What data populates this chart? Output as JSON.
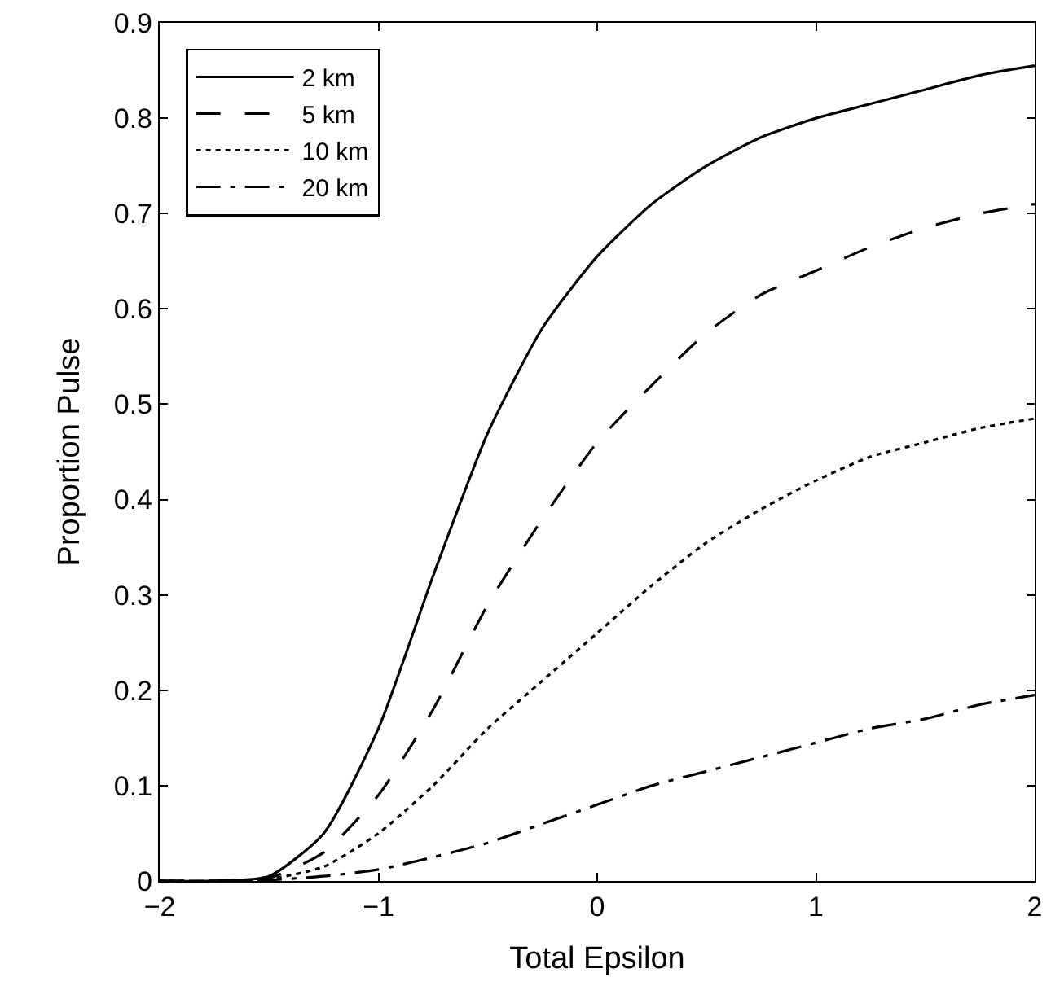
{
  "chart_data": {
    "type": "line",
    "xlabel": "Total Epsilon",
    "ylabel": "Proportion Pulse",
    "x": [
      -2,
      -1.75,
      -1.5,
      -1.25,
      -1,
      -0.75,
      -0.5,
      -0.25,
      0,
      0.25,
      0.5,
      0.75,
      1,
      1.25,
      1.5,
      1.75,
      2
    ],
    "series": [
      {
        "name": "2 km",
        "color": "#000000",
        "line_style": "solid",
        "values": [
          0,
          0,
          0.005,
          0.05,
          0.16,
          0.32,
          0.47,
          0.58,
          0.655,
          0.71,
          0.75,
          0.78,
          0.8,
          0.815,
          0.83,
          0.845,
          0.855
        ]
      },
      {
        "name": "5 km",
        "color": "#000000",
        "line_style": "dashed",
        "values": [
          0,
          0,
          0.003,
          0.03,
          0.09,
          0.18,
          0.29,
          0.38,
          0.46,
          0.52,
          0.575,
          0.615,
          0.64,
          0.665,
          0.685,
          0.7,
          0.71
        ]
      },
      {
        "name": "10 km",
        "color": "#000000",
        "line_style": "dotted",
        "values": [
          0,
          0,
          0.002,
          0.015,
          0.05,
          0.1,
          0.16,
          0.21,
          0.26,
          0.31,
          0.355,
          0.39,
          0.42,
          0.445,
          0.46,
          0.475,
          0.485
        ]
      },
      {
        "name": "20 km",
        "color": "#000000",
        "line_style": "dashdot",
        "values": [
          0,
          0,
          0.001,
          0.005,
          0.012,
          0.025,
          0.04,
          0.06,
          0.08,
          0.1,
          0.115,
          0.13,
          0.145,
          0.16,
          0.17,
          0.185,
          0.195
        ]
      }
    ],
    "xlim": [
      -2,
      2
    ],
    "xticks": [
      {
        "value": -2,
        "label": "−2"
      },
      {
        "value": -1,
        "label": "−1"
      },
      0,
      1,
      2
    ],
    "ylim": [
      0,
      0.9
    ],
    "yticks": [
      0,
      0.1,
      0.2,
      0.3,
      0.4,
      0.5,
      0.6,
      0.7,
      0.8,
      0.9
    ],
    "legend": "top left",
    "marker": "none"
  }
}
